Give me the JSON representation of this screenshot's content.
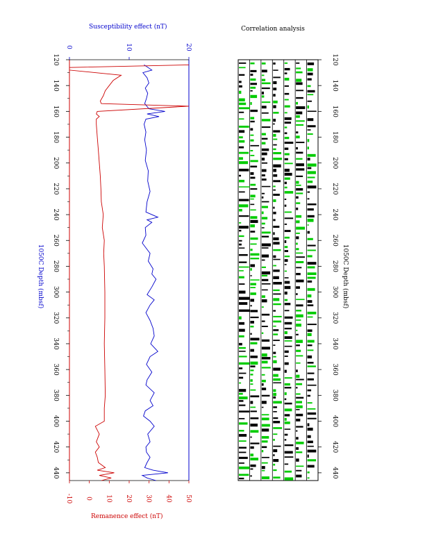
{
  "chart_data": [
    {
      "type": "line",
      "title": "",
      "top_axis": {
        "label": "Susceptibility effect (nT)",
        "range": [
          0,
          20
        ],
        "ticks": [
          0,
          10,
          20
        ],
        "color": "#0000cc"
      },
      "bottom_axis": {
        "label": "Remanence effect (nT)",
        "range": [
          -10,
          50
        ],
        "ticks": [
          -10,
          0,
          10,
          20,
          30,
          40,
          50
        ],
        "color": "#cc0000"
      },
      "depth_axis": {
        "label": "1050C   Depth (mbsf)",
        "range": [
          120,
          446
        ],
        "ticks": [
          120,
          140,
          160,
          180,
          200,
          220,
          240,
          260,
          280,
          300,
          320,
          340,
          360,
          380,
          400,
          420,
          440
        ]
      },
      "series": [
        {
          "color": "#0000cc",
          "axis": "top",
          "depth": [
            124,
            128,
            130,
            134,
            138,
            142,
            146,
            150,
            154,
            158,
            160,
            162,
            164,
            166,
            170,
            176,
            182,
            190,
            198,
            206,
            214,
            222,
            230,
            238,
            242,
            244,
            246,
            250,
            256,
            262,
            270,
            276,
            282,
            286,
            290,
            296,
            302,
            306,
            310,
            316,
            322,
            328,
            334,
            340,
            346,
            350,
            356,
            362,
            368,
            372,
            378,
            384,
            388,
            392,
            396,
            400,
            404,
            410,
            416,
            420,
            424,
            428,
            432,
            436,
            438,
            440,
            442,
            444,
            446
          ],
          "values": [
            12.5,
            13.8,
            12.3,
            13.0,
            13.3,
            12.7,
            13.1,
            12.9,
            12.6,
            13.3,
            16.0,
            13.0,
            15.0,
            12.8,
            12.5,
            12.8,
            12.6,
            12.9,
            12.7,
            13.2,
            13.1,
            13.5,
            13.0,
            12.8,
            14.8,
            13.0,
            13.8,
            12.7,
            12.8,
            12.2,
            13.5,
            13.2,
            14.0,
            13.8,
            14.5,
            13.8,
            13.0,
            14.2,
            13.5,
            12.8,
            13.5,
            14.0,
            14.2,
            13.6,
            14.8,
            13.5,
            12.9,
            13.8,
            13.0,
            12.8,
            14.2,
            13.5,
            14.0,
            12.7,
            12.4,
            13.5,
            14.2,
            13.1,
            13.5,
            12.8,
            12.9,
            13.5,
            13.0,
            12.6,
            14.0,
            16.5,
            12.2,
            13.0,
            14.5
          ]
        },
        {
          "color": "#cc0000",
          "axis": "bottom",
          "depth": [
            124,
            126,
            128,
            132,
            136,
            140,
            144,
            148,
            152,
            154,
            156,
            160,
            162,
            164,
            166,
            170,
            180,
            190,
            200,
            210,
            220,
            230,
            240,
            250,
            260,
            270,
            280,
            300,
            320,
            340,
            360,
            380,
            390,
            400,
            404,
            410,
            416,
            420,
            424,
            428,
            432,
            436,
            438,
            440,
            442,
            444,
            446
          ],
          "values": [
            50,
            -10,
            -10,
            16.0,
            12.0,
            10.0,
            8.0,
            7.0,
            5.5,
            6.0,
            50,
            4.0,
            3.5,
            5.0,
            3.5,
            3.5,
            4.0,
            4.5,
            5.0,
            5.5,
            5.8,
            6.0,
            7.0,
            6.5,
            7.5,
            7.2,
            7.5,
            7.8,
            7.8,
            7.5,
            7.8,
            8.0,
            7.5,
            7.5,
            3.0,
            5.0,
            3.5,
            5.0,
            3.0,
            4.0,
            4.5,
            8.0,
            4.0,
            12.5,
            5.0,
            11.0,
            6.0
          ]
        }
      ]
    },
    {
      "type": "heatmap",
      "title": "Correlation analysis",
      "depth_axis": {
        "label": "1050C   Depth (mbsf)",
        "range": [
          120,
          446
        ],
        "ticks": [
          120,
          140,
          160,
          180,
          200,
          220,
          240,
          260,
          280,
          300,
          320,
          340,
          360,
          380,
          400,
          420,
          440
        ]
      },
      "colors": {
        "positive": "#000000",
        "negative": "#00cc00"
      },
      "columns": 7
    }
  ]
}
